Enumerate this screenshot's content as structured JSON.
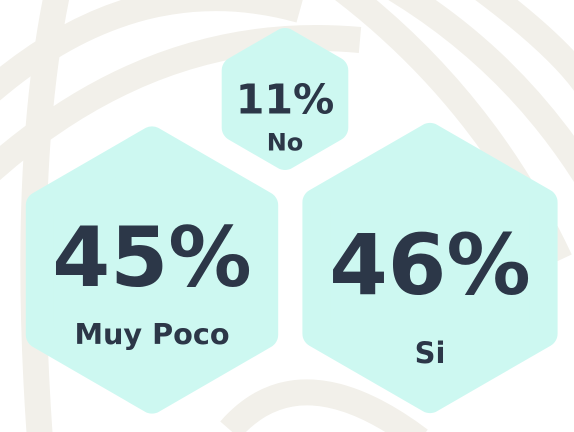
{
  "chart_data": {
    "type": "hexagon",
    "categories": [
      "Muy Poco",
      "Si",
      "No"
    ],
    "values": [
      45,
      46,
      11
    ],
    "value_labels": [
      "45%",
      "46%",
      "11%"
    ],
    "color": "#cdf8f1"
  }
}
